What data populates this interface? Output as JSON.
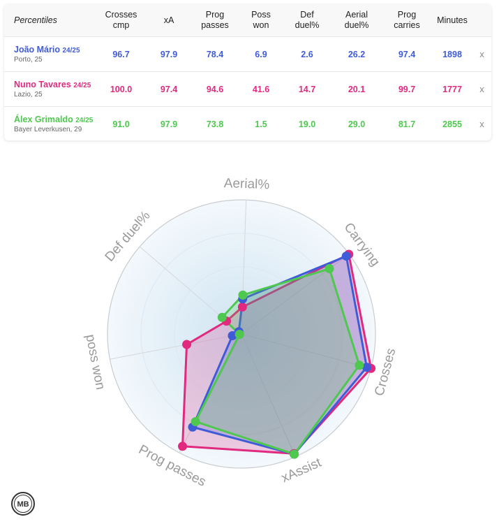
{
  "table": {
    "headers": [
      "Percentiles",
      "Crosses cmp",
      "xA",
      "Prog passes",
      "Poss won",
      "Def duel%",
      "Aerial duel%",
      "Prog carries",
      "Minutes"
    ],
    "header_lines": [
      [
        "Percentiles"
      ],
      [
        "Crosses",
        "cmp"
      ],
      [
        "xA"
      ],
      [
        "Prog",
        "passes"
      ],
      [
        "Poss",
        "won"
      ],
      [
        "Def",
        "duel%"
      ],
      [
        "Aerial",
        "duel%"
      ],
      [
        "Prog",
        "carries"
      ],
      [
        "Minutes"
      ]
    ],
    "remove_label": "x",
    "rows": [
      {
        "name": "João Mário",
        "season": "24/25",
        "club": "Porto, 25",
        "color": "#3f5bd8",
        "values": [
          "96.7",
          "97.9",
          "78.4",
          "6.9",
          "2.6",
          "26.2",
          "97.4",
          "1898"
        ]
      },
      {
        "name": "Nuno Tavares",
        "season": "24/25",
        "club": "Lazio, 25",
        "color": "#e0297f",
        "values": [
          "100.0",
          "97.4",
          "94.6",
          "41.6",
          "14.7",
          "20.1",
          "99.7",
          "1777"
        ]
      },
      {
        "name": "Álex Grimaldo",
        "season": "24/25",
        "club": "Bayer Leverkusen, 29",
        "color": "#4ec84e",
        "values": [
          "91.0",
          "97.9",
          "73.8",
          "1.5",
          "19.0",
          "29.0",
          "81.7",
          "2855"
        ]
      }
    ]
  },
  "chart_data": {
    "type": "radar",
    "axes": [
      "Aerial%",
      "Carrying",
      "Crosses",
      "xAssist",
      "Prog passes",
      "poss won",
      "Def duel%"
    ],
    "range": [
      0,
      100
    ],
    "series": [
      {
        "name": "João Mário",
        "color": "#3f5bd8",
        "values": [
          26.2,
          97.4,
          96.7,
          97.9,
          78.4,
          6.9,
          2.6
        ]
      },
      {
        "name": "Nuno Tavares",
        "color": "#e0297f",
        "values": [
          20.1,
          99.7,
          100.0,
          97.4,
          94.6,
          41.6,
          14.7
        ]
      },
      {
        "name": "Álex Grimaldo",
        "color": "#4ec84e",
        "values": [
          29.0,
          81.7,
          91.0,
          97.9,
          73.8,
          1.5,
          19.0
        ]
      }
    ]
  },
  "logo": {
    "text": "MB"
  }
}
